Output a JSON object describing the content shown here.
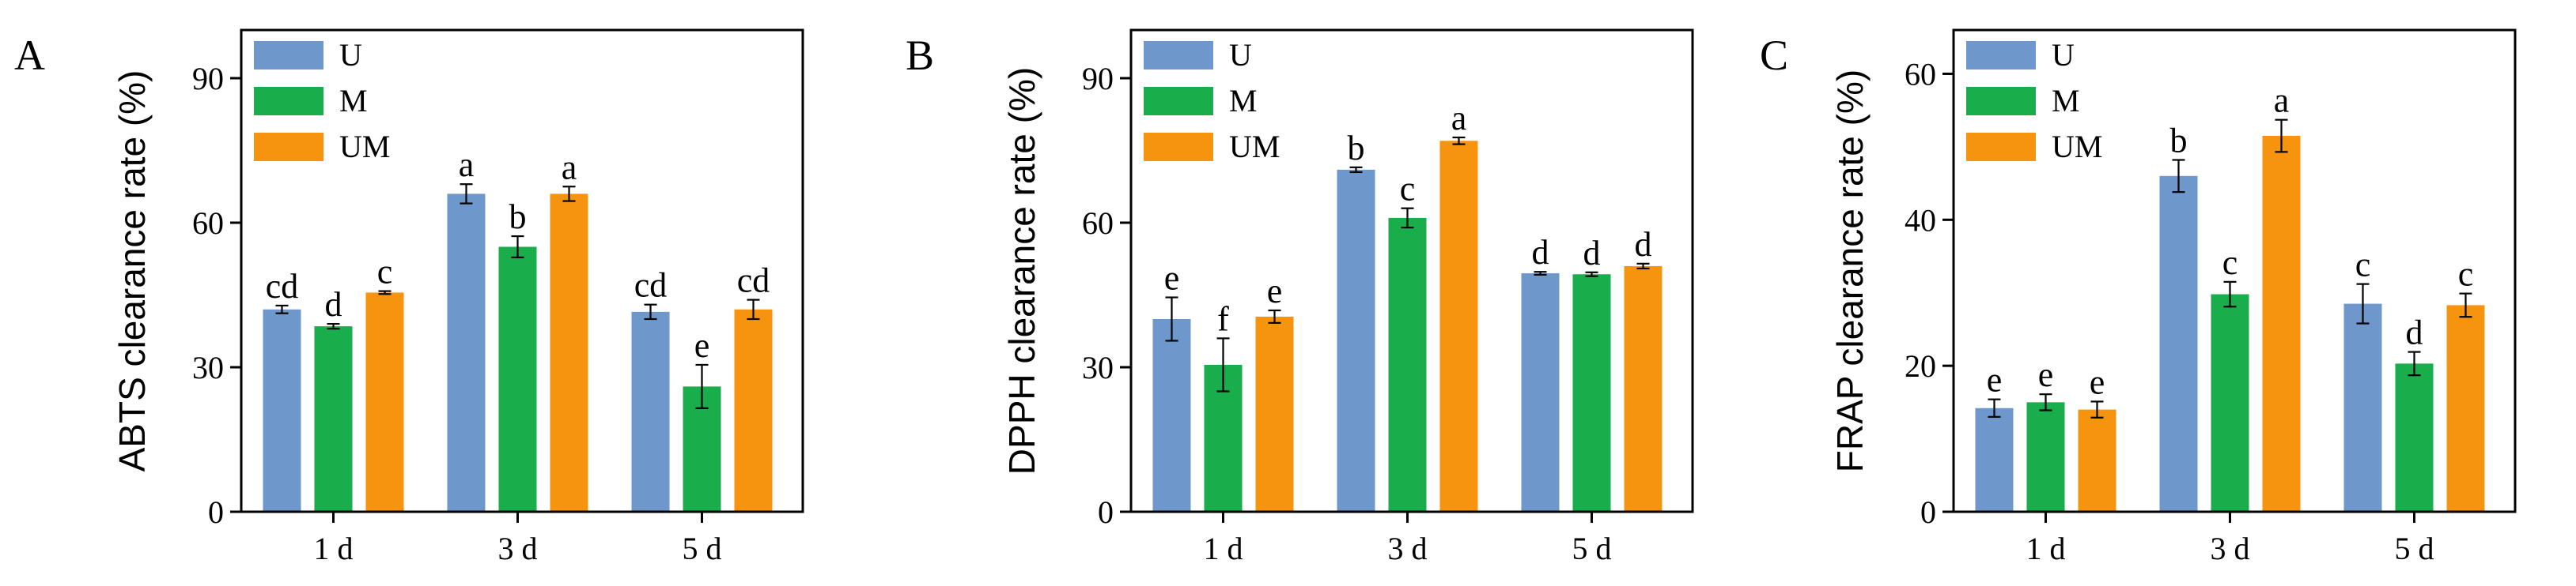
{
  "colors": {
    "U": "#6e97cb",
    "M": "#1aad4b",
    "UM": "#f7940f"
  },
  "chart_data": [
    {
      "type": "bar",
      "panel": "A",
      "ylabel": "ABTS clearance rate (%)",
      "ylim": [
        0,
        100
      ],
      "yticks": [
        0,
        30,
        60,
        90
      ],
      "categories": [
        "1 d",
        "3 d",
        "5 d"
      ],
      "legend": [
        "U",
        "M",
        "UM"
      ],
      "legend_position": "top-left",
      "series": [
        {
          "name": "U",
          "values": [
            42,
            66,
            41.5
          ],
          "errors": [
            0.8,
            2.0,
            1.5
          ],
          "letters": [
            "cd",
            "a",
            "cd"
          ]
        },
        {
          "name": "M",
          "values": [
            38.5,
            55,
            26
          ],
          "errors": [
            0.5,
            2.2,
            4.5
          ],
          "letters": [
            "d",
            "b",
            "e"
          ]
        },
        {
          "name": "UM",
          "values": [
            45.5,
            66,
            42
          ],
          "errors": [
            0.3,
            1.5,
            2.0
          ],
          "letters": [
            "c",
            "a",
            "cd"
          ]
        }
      ]
    },
    {
      "type": "bar",
      "panel": "B",
      "ylabel": "DPPH clearance rate (%)",
      "ylim": [
        0,
        100
      ],
      "yticks": [
        0,
        30,
        60,
        90
      ],
      "categories": [
        "1 d",
        "3 d",
        "5 d"
      ],
      "legend": [
        "U",
        "M",
        "UM"
      ],
      "legend_position": "top-left",
      "series": [
        {
          "name": "U",
          "values": [
            40,
            71,
            49.5
          ],
          "errors": [
            4.5,
            0.5,
            0.3
          ],
          "letters": [
            "e",
            "b",
            "d"
          ]
        },
        {
          "name": "M",
          "values": [
            30.5,
            61,
            49.3
          ],
          "errors": [
            5.5,
            2.0,
            0.4
          ],
          "letters": [
            "f",
            "c",
            "d"
          ]
        },
        {
          "name": "UM",
          "values": [
            40.5,
            77,
            51
          ],
          "errors": [
            1.3,
            0.7,
            0.5
          ],
          "letters": [
            "e",
            "a",
            "d"
          ]
        }
      ]
    },
    {
      "type": "bar",
      "panel": "C",
      "ylabel": "FRAP clearance rate (%)",
      "ylim": [
        0,
        66
      ],
      "yticks": [
        0,
        20,
        40,
        60
      ],
      "categories": [
        "1 d",
        "3 d",
        "5 d"
      ],
      "legend": [
        "U",
        "M",
        "UM"
      ],
      "legend_position": "top-left",
      "series": [
        {
          "name": "U",
          "values": [
            14.2,
            46,
            28.5
          ],
          "errors": [
            1.2,
            2.2,
            2.7
          ],
          "letters": [
            "e",
            "b",
            "c"
          ]
        },
        {
          "name": "M",
          "values": [
            15,
            29.8,
            20.3
          ],
          "errors": [
            1.1,
            1.7,
            1.6
          ],
          "letters": [
            "e",
            "c",
            "d"
          ]
        },
        {
          "name": "UM",
          "values": [
            14,
            51.5,
            28.3
          ],
          "errors": [
            1.1,
            2.2,
            1.6
          ],
          "letters": [
            "e",
            "a",
            "c"
          ]
        }
      ]
    }
  ]
}
